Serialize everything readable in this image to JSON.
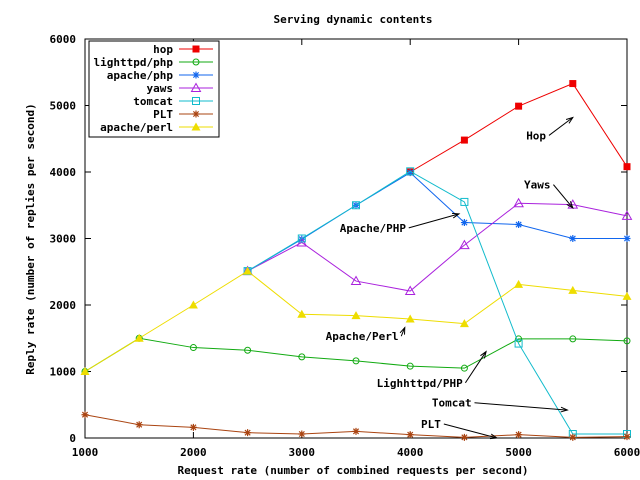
{
  "chart_data": {
    "type": "line",
    "title": "Serving dynamic contents",
    "xlabel": "Request rate (number of combined requests per second)",
    "ylabel": "Reply rate (number of replies per second)",
    "xlim": [
      1000,
      6000
    ],
    "ylim": [
      0,
      6000
    ],
    "xticks": [
      1000,
      2000,
      3000,
      4000,
      5000,
      6000
    ],
    "yticks": [
      0,
      1000,
      2000,
      3000,
      4000,
      5000,
      6000
    ],
    "grid": false,
    "legend_position": "top-left",
    "series": [
      {
        "name": "hop",
        "color": "#ee0000",
        "marker": "filled-square",
        "x": [
          4000,
          4500,
          5000,
          5500,
          6000
        ],
        "y": [
          4000,
          4480,
          4990,
          5330,
          4080
        ]
      },
      {
        "name": "lighttpd/php",
        "color": "#11aa11",
        "marker": "open-circle",
        "x": [
          1000,
          1500,
          2000,
          2500,
          3000,
          3500,
          4000,
          4500,
          5000,
          5500,
          6000
        ],
        "y": [
          1000,
          1500,
          1360,
          1320,
          1220,
          1160,
          1080,
          1050,
          1490,
          1490,
          1460
        ]
      },
      {
        "name": "apache/php",
        "color": "#1166ee",
        "marker": "asterisk",
        "x": [
          2500,
          3000,
          3500,
          4000,
          4500,
          5000,
          5500,
          6000
        ],
        "y": [
          2510,
          2990,
          3500,
          3990,
          3240,
          3210,
          3000,
          3000
        ]
      },
      {
        "name": "yaws",
        "color": "#aa22dd",
        "marker": "open-triangle",
        "x": [
          2500,
          3000,
          3500,
          4000,
          4500,
          5000,
          5500,
          6000
        ],
        "y": [
          2510,
          2940,
          2360,
          2210,
          2900,
          3530,
          3510,
          3340
        ]
      },
      {
        "name": "tomcat",
        "color": "#11bbcc",
        "marker": "open-square",
        "x": [
          2500,
          3000,
          3500,
          4000,
          4500,
          5000,
          5500,
          6000
        ],
        "y": [
          2510,
          3000,
          3500,
          4010,
          3550,
          1420,
          60,
          60
        ]
      },
      {
        "name": "PLT",
        "color": "#aa4411",
        "marker": "star",
        "x": [
          1000,
          1500,
          2000,
          2500,
          3000,
          3500,
          4000,
          4500,
          5000,
          5500,
          6000
        ],
        "y": [
          350,
          200,
          160,
          80,
          60,
          100,
          50,
          10,
          50,
          10,
          20
        ]
      },
      {
        "name": "apache/perl",
        "color": "#eedd00",
        "marker": "filled-triangle",
        "x": [
          1000,
          1500,
          2000,
          2500,
          3000,
          3500,
          4000,
          4500,
          5000,
          5500,
          6000
        ],
        "y": [
          1000,
          1500,
          2000,
          2510,
          1860,
          1840,
          1790,
          1720,
          2310,
          2220,
          2130
        ]
      }
    ],
    "annotations": [
      {
        "text": "Hop",
        "x": 5070,
        "y": 4490,
        "arrow_to": [
          5500,
          4820
        ]
      },
      {
        "text": "Yaws",
        "x": 5050,
        "y": 3750,
        "arrow_to": [
          5500,
          3460
        ]
      },
      {
        "text": "Apache/PHP",
        "x": 3350,
        "y": 3100,
        "arrow_to": [
          4450,
          3370
        ]
      },
      {
        "text": "Apache/Perl",
        "x": 3220,
        "y": 1470,
        "arrow_to": [
          3950,
          1660
        ]
      },
      {
        "text": "Lighhttpd/PHP",
        "x": 3690,
        "y": 770,
        "arrow_to": [
          4700,
          1300
        ]
      },
      {
        "text": "Tomcat",
        "x": 4200,
        "y": 470,
        "arrow_to": [
          5450,
          420
        ]
      },
      {
        "text": "PLT",
        "x": 4100,
        "y": 150,
        "arrow_to": [
          4800,
          0
        ]
      }
    ]
  }
}
